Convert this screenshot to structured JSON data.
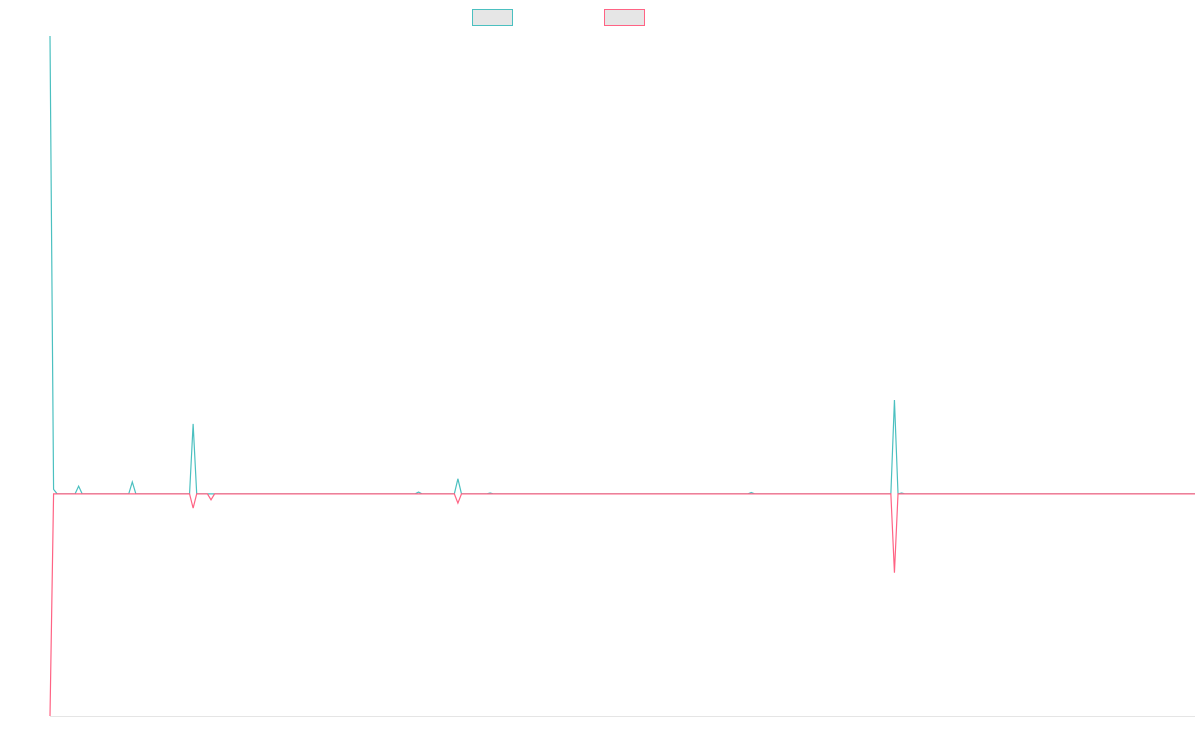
{
  "chart_data": {
    "type": "line",
    "x": [
      0,
      1,
      2,
      7,
      8,
      9,
      22,
      23,
      24,
      39,
      40,
      41,
      44,
      45,
      46,
      102,
      103,
      104,
      113,
      114,
      115,
      122,
      123,
      124,
      195,
      196,
      197,
      235,
      236,
      237,
      238,
      239,
      320
    ],
    "xlim": [
      0,
      320
    ],
    "ylim": [
      -48.5,
      100
    ],
    "series": [
      {
        "color": "#4bc0c0",
        "values": [
          100,
          1,
          0,
          0,
          1.7,
          0,
          0,
          2.6,
          0,
          0,
          15.3,
          0,
          0,
          0,
          0,
          0,
          0.4,
          0,
          0,
          3.3,
          0,
          0,
          0.2,
          0,
          0,
          0.3,
          0,
          0,
          20.5,
          0,
          0.2,
          0,
          0
        ]
      },
      {
        "color": "#ff6384",
        "values": [
          -48.5,
          0,
          0,
          0,
          0,
          0,
          0,
          0,
          0,
          0,
          -3.1,
          0,
          0,
          -1.3,
          0,
          0,
          0,
          0,
          0,
          -2,
          0,
          0,
          0,
          0,
          0,
          0,
          0,
          0,
          -17.2,
          0,
          0,
          0,
          0
        ]
      }
    ]
  }
}
